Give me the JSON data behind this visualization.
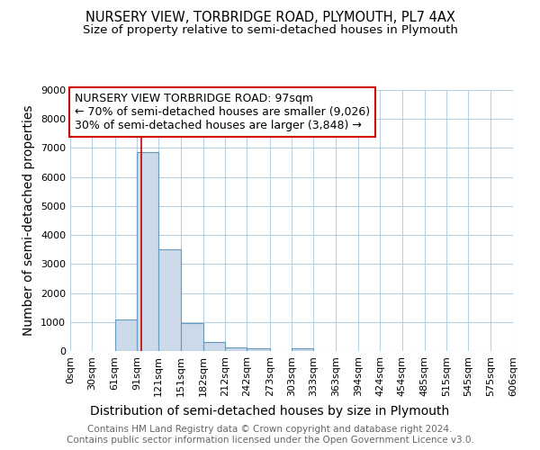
{
  "title": "NURSERY VIEW, TORBRIDGE ROAD, PLYMOUTH, PL7 4AX",
  "subtitle": "Size of property relative to semi-detached houses in Plymouth",
  "xlabel": "Distribution of semi-detached houses by size in Plymouth",
  "ylabel": "Number of semi-detached properties",
  "footer_line1": "Contains HM Land Registry data © Crown copyright and database right 2024.",
  "footer_line2": "Contains public sector information licensed under the Open Government Licence v3.0.",
  "property_size": 97,
  "property_label": "NURSERY VIEW TORBRIDGE ROAD: 97sqm",
  "pct_smaller": 70,
  "pct_smaller_n": "9,026",
  "pct_larger": 30,
  "pct_larger_n": "3,848",
  "bin_edges": [
    0,
    30,
    61,
    91,
    121,
    151,
    182,
    212,
    242,
    273,
    303,
    333,
    363,
    394,
    424,
    454,
    485,
    515,
    545,
    575,
    606
  ],
  "bar_heights": [
    0,
    0,
    1100,
    6850,
    3500,
    950,
    300,
    120,
    80,
    0,
    100,
    0,
    0,
    0,
    0,
    0,
    0,
    0,
    0,
    0
  ],
  "bar_color": "#ccd9e8",
  "bar_edge_color": "#6699bb",
  "red_line_color": "#cc0000",
  "grid_color": "#b8cfe0",
  "background_color": "#ffffff",
  "ylim": [
    0,
    9000
  ],
  "yticks": [
    0,
    1000,
    2000,
    3000,
    4000,
    5000,
    6000,
    7000,
    8000,
    9000
  ],
  "annotation_box_color": "#ffffff",
  "annotation_box_edge_color": "#cc0000",
  "title_fontsize": 10.5,
  "subtitle_fontsize": 9.5,
  "axis_label_fontsize": 10,
  "tick_fontsize": 8,
  "annotation_fontsize": 9,
  "footer_fontsize": 7.5
}
